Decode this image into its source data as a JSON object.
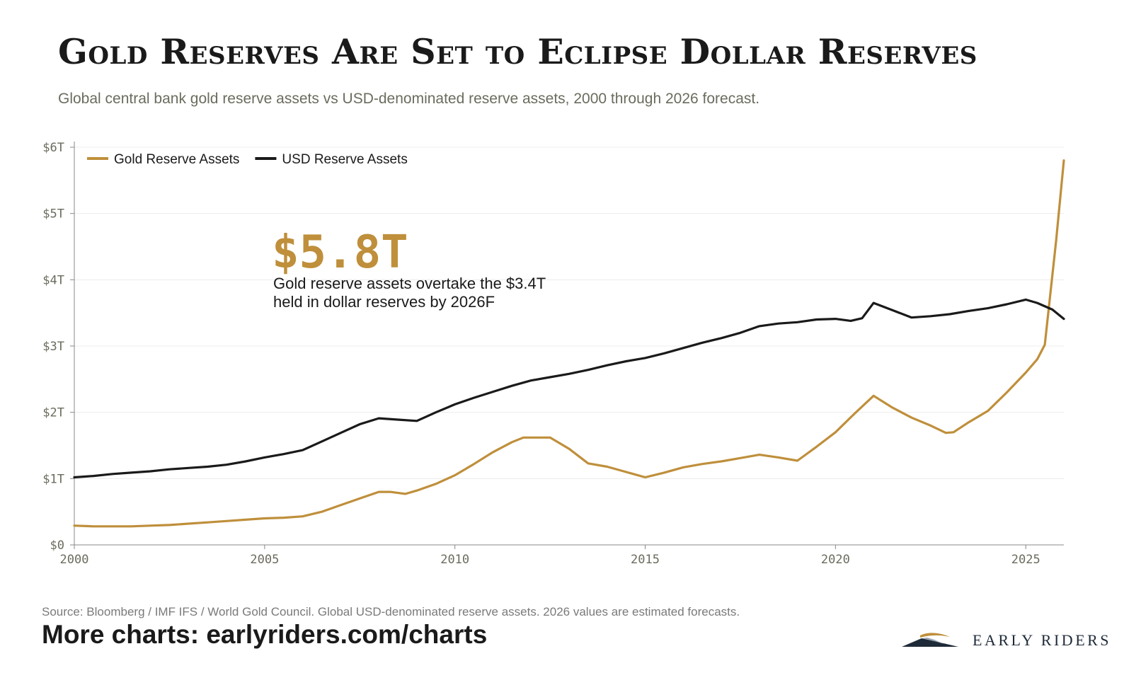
{
  "title": "Gold Reserves Are Set to Eclipse Dollar Reserves",
  "subtitle": "Global central bank gold reserve assets vs USD-denominated reserve assets, 2000 through 2026 forecast.",
  "source": "Source: Bloomberg / IMF IFS / World Gold Council. Global USD-denominated reserve assets. 2026 values are estimated forecasts.",
  "more_charts": "More charts: earlyriders.com/charts",
  "logo_text": "EARLY RIDERS",
  "colors": {
    "gold": "#bf8f3b",
    "usd": "#1a1a1a",
    "grid": "#ececec",
    "axis": "#888888",
    "tick_text": "#6b6b5e"
  },
  "annotation": {
    "value": "$5.8T",
    "text_line1": "Gold reserve assets overtake the $3.4T",
    "text_line2": "held in dollar reserves by 2026F"
  },
  "chart_data": {
    "type": "line",
    "xlim": [
      2000,
      2026
    ],
    "ylim": [
      0,
      6
    ],
    "x_ticks": [
      2000,
      2005,
      2010,
      2015,
      2020,
      2025
    ],
    "x_tick_labels": [
      "2000",
      "2005",
      "2010",
      "2015",
      "2020",
      "2025"
    ],
    "y_ticks": [
      0,
      1,
      2,
      3,
      4,
      5,
      6
    ],
    "y_tick_labels": [
      "$0",
      "$1T",
      "$2T",
      "$3T",
      "$4T",
      "$5T",
      "$6T"
    ],
    "grid": true,
    "legend_position": "top-left",
    "series": [
      {
        "name": "Gold Reserve Assets",
        "color": "#bf8f3b",
        "points": [
          [
            2000,
            0.29
          ],
          [
            2000.5,
            0.28
          ],
          [
            2001,
            0.28
          ],
          [
            2001.5,
            0.28
          ],
          [
            2002,
            0.29
          ],
          [
            2002.5,
            0.3
          ],
          [
            2003,
            0.32
          ],
          [
            2003.5,
            0.34
          ],
          [
            2004,
            0.36
          ],
          [
            2004.5,
            0.38
          ],
          [
            2005,
            0.4
          ],
          [
            2005.5,
            0.41
          ],
          [
            2006,
            0.43
          ],
          [
            2006.5,
            0.5
          ],
          [
            2007,
            0.6
          ],
          [
            2007.5,
            0.7
          ],
          [
            2008,
            0.8
          ],
          [
            2008.3,
            0.8
          ],
          [
            2008.7,
            0.77
          ],
          [
            2009,
            0.82
          ],
          [
            2009.5,
            0.92
          ],
          [
            2010,
            1.05
          ],
          [
            2010.5,
            1.22
          ],
          [
            2011,
            1.4
          ],
          [
            2011.5,
            1.55
          ],
          [
            2011.8,
            1.62
          ],
          [
            2012.5,
            1.62
          ],
          [
            2013,
            1.45
          ],
          [
            2013.5,
            1.23
          ],
          [
            2014,
            1.18
          ],
          [
            2014.5,
            1.1
          ],
          [
            2015,
            1.02
          ],
          [
            2015.5,
            1.09
          ],
          [
            2016,
            1.17
          ],
          [
            2016.5,
            1.22
          ],
          [
            2017,
            1.26
          ],
          [
            2017.5,
            1.31
          ],
          [
            2018,
            1.36
          ],
          [
            2018.5,
            1.32
          ],
          [
            2019,
            1.27
          ],
          [
            2019.5,
            1.48
          ],
          [
            2020,
            1.7
          ],
          [
            2020.5,
            1.98
          ],
          [
            2021,
            2.25
          ],
          [
            2021.5,
            2.07
          ],
          [
            2022,
            1.92
          ],
          [
            2022.5,
            1.8
          ],
          [
            2022.9,
            1.69
          ],
          [
            2023.1,
            1.7
          ],
          [
            2023.5,
            1.85
          ],
          [
            2024,
            2.02
          ],
          [
            2024.5,
            2.3
          ],
          [
            2025,
            2.6
          ],
          [
            2025.3,
            2.8
          ],
          [
            2025.5,
            3.02
          ],
          [
            2025.8,
            4.6
          ],
          [
            2026,
            5.8
          ]
        ]
      },
      {
        "name": "USD Reserve Assets",
        "color": "#1a1a1a",
        "points": [
          [
            2000,
            1.02
          ],
          [
            2000.5,
            1.04
          ],
          [
            2001,
            1.07
          ],
          [
            2001.5,
            1.09
          ],
          [
            2002,
            1.11
          ],
          [
            2002.5,
            1.14
          ],
          [
            2003,
            1.16
          ],
          [
            2003.5,
            1.18
          ],
          [
            2004,
            1.21
          ],
          [
            2004.5,
            1.26
          ],
          [
            2005,
            1.32
          ],
          [
            2005.5,
            1.37
          ],
          [
            2006,
            1.43
          ],
          [
            2006.5,
            1.56
          ],
          [
            2007,
            1.69
          ],
          [
            2007.5,
            1.82
          ],
          [
            2008,
            1.91
          ],
          [
            2008.5,
            1.89
          ],
          [
            2009,
            1.87
          ],
          [
            2009.5,
            2.0
          ],
          [
            2010,
            2.12
          ],
          [
            2010.5,
            2.22
          ],
          [
            2011,
            2.31
          ],
          [
            2011.5,
            2.4
          ],
          [
            2012,
            2.48
          ],
          [
            2012.5,
            2.53
          ],
          [
            2013,
            2.58
          ],
          [
            2013.5,
            2.64
          ],
          [
            2014,
            2.71
          ],
          [
            2014.5,
            2.77
          ],
          [
            2015,
            2.82
          ],
          [
            2015.5,
            2.89
          ],
          [
            2016,
            2.97
          ],
          [
            2016.5,
            3.05
          ],
          [
            2017,
            3.12
          ],
          [
            2017.5,
            3.2
          ],
          [
            2018,
            3.3
          ],
          [
            2018.5,
            3.34
          ],
          [
            2019,
            3.36
          ],
          [
            2019.5,
            3.4
          ],
          [
            2020,
            3.41
          ],
          [
            2020.4,
            3.38
          ],
          [
            2020.7,
            3.42
          ],
          [
            2021,
            3.65
          ],
          [
            2021.5,
            3.54
          ],
          [
            2022,
            3.43
          ],
          [
            2022.5,
            3.45
          ],
          [
            2023,
            3.48
          ],
          [
            2023.5,
            3.53
          ],
          [
            2024,
            3.57
          ],
          [
            2024.5,
            3.63
          ],
          [
            2025,
            3.7
          ],
          [
            2025.3,
            3.65
          ],
          [
            2025.7,
            3.55
          ],
          [
            2026,
            3.41
          ]
        ]
      }
    ]
  }
}
